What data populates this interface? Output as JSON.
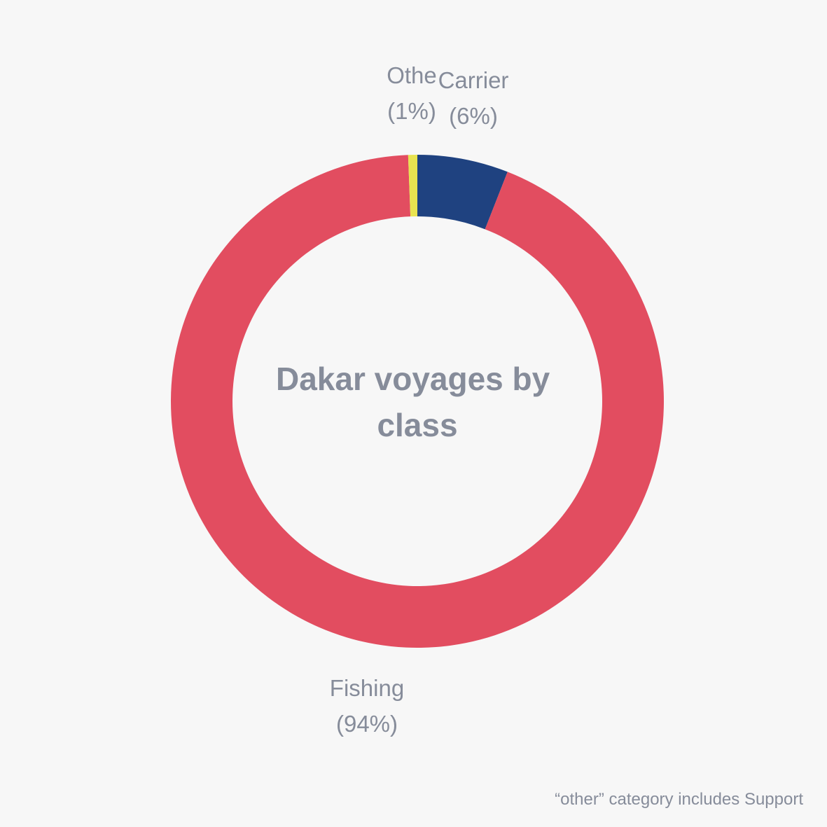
{
  "chart_data": {
    "type": "pie",
    "title": "Dakar voyages by class",
    "title_lines": [
      "Dakar voyages by",
      "class"
    ],
    "donut": true,
    "slices": [
      {
        "name": "Carrier",
        "percent_label": "(6%)",
        "value": 6,
        "color": "#1f4280"
      },
      {
        "name": "Fishing",
        "percent_label": "(94%)",
        "value": 94,
        "color": "#e24d60"
      },
      {
        "name": "Othe",
        "percent_label": "(1%)",
        "value": 0.6,
        "color": "#e8e350"
      }
    ]
  },
  "footnote": "“other” category includes Support"
}
